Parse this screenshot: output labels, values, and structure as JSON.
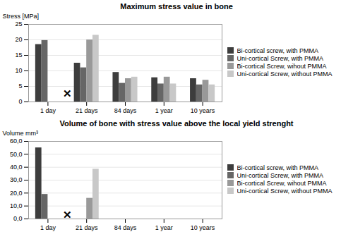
{
  "chart_data": [
    {
      "type": "bar",
      "title": "Maximum stress value in bone",
      "categories": [
        "1 day",
        "21 days",
        "84 days",
        "1 year",
        "10 years"
      ],
      "y_label": "Stress [MPa]",
      "series": [
        {
          "name": "Bi-cortical screw, with PMMA",
          "color": "#3d3d3d",
          "values": [
            18.5,
            12.5,
            9.5,
            7.8,
            7.5
          ]
        },
        {
          "name": "Uni-cortical Screw, with PMMA",
          "color": "#666666",
          "values": [
            19.8,
            11.0,
            6.0,
            5.8,
            5.5
          ]
        },
        {
          "name": "Bi-cortical Screw, wihout PMMA",
          "color": "#999999",
          "values": [
            0,
            20.0,
            7.5,
            8.0,
            7.0
          ]
        },
        {
          "name": "Uni-cortical Screw, without PMMA",
          "color": "#c8c8c8",
          "values": [
            0,
            21.5,
            8.0,
            5.8,
            5.5
          ]
        }
      ],
      "ylim": [
        0,
        25
      ],
      "yticks": [
        0,
        5,
        10,
        15,
        20,
        25
      ],
      "grid": true,
      "legend": "right",
      "annotations": [
        {
          "text": "✕",
          "x": 0.5,
          "y": 2.5
        }
      ]
    },
    {
      "type": "bar",
      "title": "Volume of bone with stress value above the local yield strenght",
      "categories": [
        "1 day",
        "21 days",
        "84 days",
        "1 year",
        "10 years"
      ],
      "y_label": "Volume mm³",
      "series": [
        {
          "name": "Bi-cortical screw, with PMMA",
          "color": "#3d3d3d",
          "values": [
            55.0,
            0,
            0,
            0,
            0
          ]
        },
        {
          "name": "Uni-cortical Screw, with PMMA",
          "color": "#666666",
          "values": [
            19.0,
            0,
            0,
            0,
            0
          ]
        },
        {
          "name": "Bi-cortical Screw, wihout PMMA",
          "color": "#999999",
          "values": [
            0,
            16.0,
            0,
            0,
            0
          ]
        },
        {
          "name": "Uni-cortical Screw, without PMMA",
          "color": "#c8c8c8",
          "values": [
            0,
            38.5,
            0,
            0,
            0
          ]
        }
      ],
      "ylim": [
        0,
        60
      ],
      "yticks": [
        {
          "value": 0.0,
          "label": "0,0"
        },
        {
          "value": 10.0,
          "label": "10,0"
        },
        {
          "value": 20.0,
          "label": "20,0"
        },
        {
          "value": 30.0,
          "label": "30,0"
        },
        {
          "value": 40.0,
          "label": "40,0"
        },
        {
          "value": 50.0,
          "label": "50,0"
        },
        {
          "value": 60.0,
          "label": "60,0"
        }
      ],
      "grid": true,
      "legend": "right",
      "annotations": [
        {
          "text": "✕",
          "x": 0.5,
          "y": 3.0
        }
      ]
    }
  ]
}
